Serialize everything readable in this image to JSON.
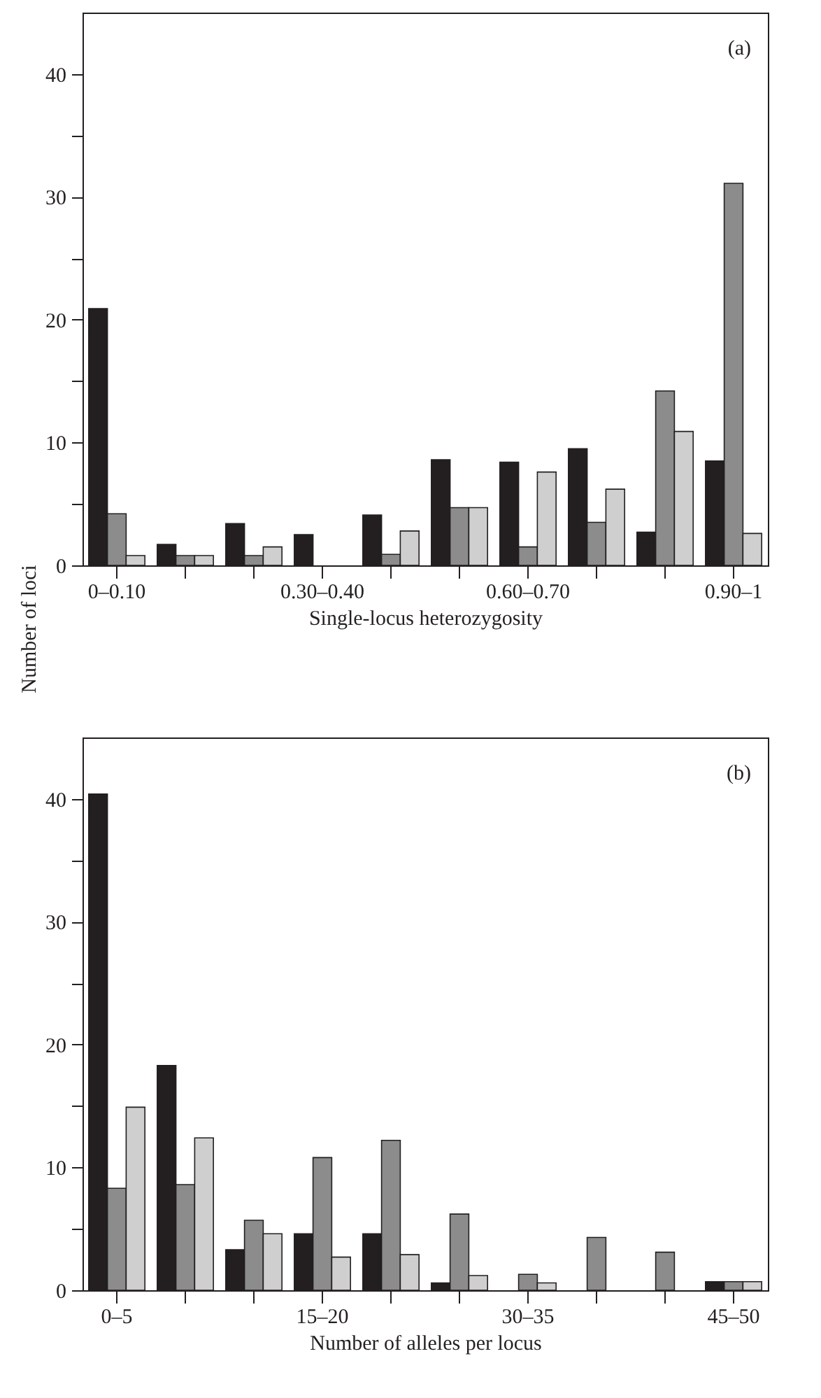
{
  "chart_data": [
    {
      "type": "bar",
      "categories": [
        "0–0.10",
        null,
        null,
        "0.30–0.40",
        null,
        null,
        "0.60–0.70",
        null,
        null,
        "0.90–1"
      ],
      "xlabel": "Single-locus heterozygosity",
      "ylabel": "Number of loci",
      "annotations": [
        "(a)"
      ],
      "ylim": [
        0,
        45
      ],
      "yticks": [
        0,
        {
          "value": 5,
          "label": null
        },
        10,
        {
          "value": 15,
          "label": null
        },
        20,
        {
          "value": 25,
          "label": null
        },
        30,
        {
          "value": 35,
          "label": null
        },
        40
      ],
      "grid": false,
      "legend": false,
      "series": [
        {
          "color": "#231f20",
          "values": [
            20.9,
            1.7,
            3.4,
            2.5,
            4.1,
            8.6,
            8.4,
            9.5,
            2.7,
            8.5
          ]
        },
        {
          "color": "#8c8c8c",
          "values": [
            4.2,
            0.8,
            0.8,
            0,
            0.9,
            4.7,
            1.5,
            3.5,
            14.2,
            31.1
          ]
        },
        {
          "color": "#cfcfcf",
          "values": [
            0.8,
            0.8,
            1.5,
            0,
            2.8,
            4.7,
            7.6,
            6.2,
            10.9,
            2.6
          ]
        }
      ]
    },
    {
      "type": "bar",
      "categories": [
        "0–5",
        null,
        null,
        "15–20",
        null,
        null,
        "30–35",
        null,
        null,
        "45–50"
      ],
      "xlabel": "Number of alleles per locus",
      "annotations": [
        "(b)"
      ],
      "ylim": [
        0,
        45
      ],
      "yticks": [
        0,
        {
          "value": 5,
          "label": null
        },
        10,
        {
          "value": 15,
          "label": null
        },
        20,
        {
          "value": 25,
          "label": null
        },
        30,
        {
          "value": 35,
          "label": null
        },
        40
      ],
      "grid": false,
      "legend": false,
      "series": [
        {
          "color": "#231f20",
          "values": [
            40.4,
            18.3,
            3.3,
            4.6,
            4.6,
            0.6,
            0,
            0,
            0,
            0.7
          ]
        },
        {
          "color": "#8c8c8c",
          "values": [
            8.3,
            8.6,
            5.7,
            10.8,
            12.2,
            6.2,
            1.3,
            4.3,
            3.1,
            0.7
          ]
        },
        {
          "color": "#cfcfcf",
          "values": [
            14.9,
            12.4,
            4.6,
            2.7,
            2.9,
            1.2,
            0.6,
            0,
            0,
            0.7
          ]
        }
      ]
    }
  ]
}
